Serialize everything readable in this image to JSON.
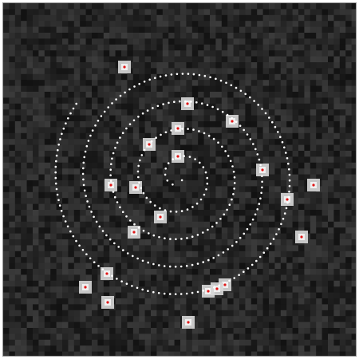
{
  "image": {
    "description_colors": {
      "background": "#1a1a1a",
      "noise_light": "#3c3c3c",
      "blob": "#f0f0f0",
      "spiral_dots": "#ffffff",
      "marker": "#e01818"
    },
    "spiral": {
      "turns": 4.6,
      "dot_color": "#ffffff"
    },
    "blobs": [
      {
        "id": 1
      },
      {
        "id": 2
      },
      {
        "id": 3
      },
      {
        "id": 4
      },
      {
        "id": 5
      },
      {
        "id": 6
      },
      {
        "id": 7
      },
      {
        "id": 8
      },
      {
        "id": 9
      },
      {
        "id": 10
      },
      {
        "id": 11
      },
      {
        "id": 12
      },
      {
        "id": 13
      },
      {
        "id": 14
      },
      {
        "id": 15
      },
      {
        "id": 16
      },
      {
        "id": 17
      },
      {
        "id": 18
      },
      {
        "id": 19
      },
      {
        "id": 20
      },
      {
        "id": 21
      }
    ]
  }
}
